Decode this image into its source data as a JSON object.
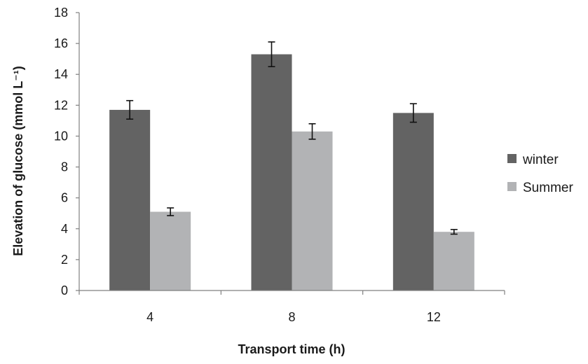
{
  "chart_data": {
    "type": "bar",
    "categories": [
      "4",
      "8",
      "12"
    ],
    "series": [
      {
        "name": "winter",
        "values": [
          11.7,
          15.3,
          11.5
        ],
        "errors": [
          0.6,
          0.8,
          0.6
        ],
        "color": "#636363"
      },
      {
        "name": "Summer",
        "values": [
          5.1,
          10.3,
          3.8
        ],
        "errors": [
          0.25,
          0.5,
          0.15
        ],
        "color": "#b2b3b5"
      }
    ],
    "xlabel": "Transport time (h)",
    "ylabel": "Elevation of glucose (mmol L⁻¹)",
    "ylim": [
      0,
      18
    ],
    "yticks": [
      "0",
      "2",
      "4",
      "6",
      "8",
      "10",
      "12",
      "14",
      "16",
      "18"
    ],
    "grid": false,
    "legend": "right"
  }
}
